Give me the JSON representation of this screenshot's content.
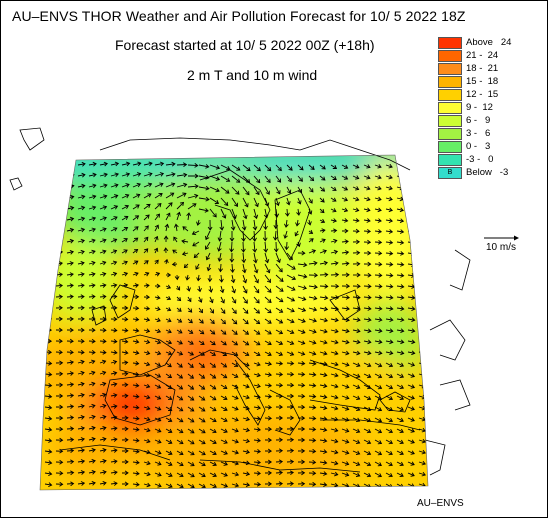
{
  "title": "AU–ENVS THOR Weather and Air Pollution Forecast for 10/ 5 2022  18Z",
  "subtitle": "Forecast started at 10/ 5 2022  00Z (+18h)",
  "field_label": "2 m T and 10 m wind",
  "legend": [
    {
      "color": "#ff3300",
      "label": "Above   24",
      "text": ""
    },
    {
      "color": "#ff6600",
      "label": "21 -  24",
      "text": ""
    },
    {
      "color": "#ff8c1a",
      "label": "18 -  21",
      "text": ""
    },
    {
      "color": "#ffb300",
      "label": "15 -  18",
      "text": ""
    },
    {
      "color": "#ffd000",
      "label": "12 -  15",
      "text": ""
    },
    {
      "color": "#ffff33",
      "label": "9 -  12",
      "text": ""
    },
    {
      "color": "#ccff33",
      "label": "6 -   9",
      "text": ""
    },
    {
      "color": "#a3f243",
      "label": "3 -   6",
      "text": ""
    },
    {
      "color": "#66ee66",
      "label": "0 -   3",
      "text": ""
    },
    {
      "color": "#33e3b0",
      "label": "-3 -   0",
      "text": ""
    },
    {
      "color": "#33ddcc",
      "label": "Below   -3",
      "text": "B"
    }
  ],
  "wind_scale_label": "10 m/s",
  "credit": "AU–ENVS"
}
